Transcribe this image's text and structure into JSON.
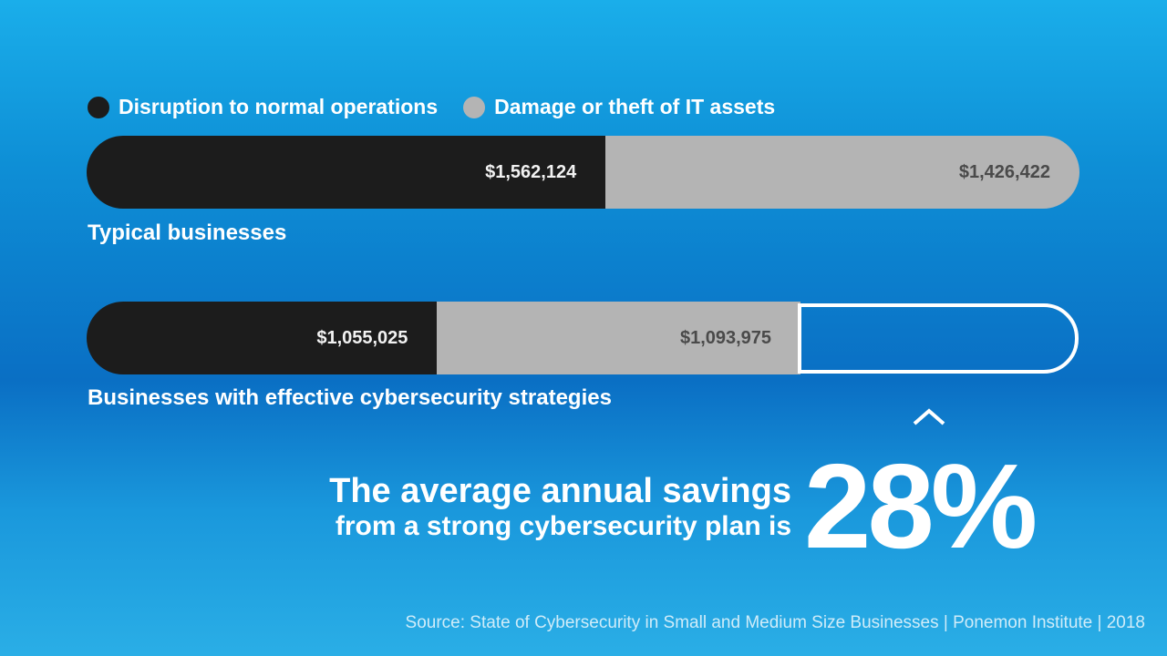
{
  "legend": {
    "items": [
      {
        "label": "Disruption to normal operations",
        "color": "#1c1c1c"
      },
      {
        "label": "Damage or theft of IT assets",
        "color": "#b4b4b4"
      }
    ]
  },
  "chart_data": {
    "type": "bar",
    "orientation": "horizontal",
    "stacked": true,
    "categories": [
      "Typical businesses",
      "Businesses with effective cybersecurity strategies"
    ],
    "series": [
      {
        "name": "Disruption to normal operations",
        "values": [
          1562124,
          1055025
        ],
        "labels": [
          "$1,562,124",
          "$1,055,025"
        ]
      },
      {
        "name": "Damage or theft of IT assets",
        "values": [
          1426422,
          1093975
        ],
        "labels": [
          "$1,426,422",
          "$1,093,975"
        ]
      }
    ],
    "legend_position": "top-left",
    "grid": false
  },
  "headline": {
    "line1": "The average annual savings",
    "line2": "from a strong cybersecurity plan is",
    "value": "28%"
  },
  "source": "Source: State of Cybersecurity in Small and Medium Size Businesses | Ponemon Institute | 2018"
}
